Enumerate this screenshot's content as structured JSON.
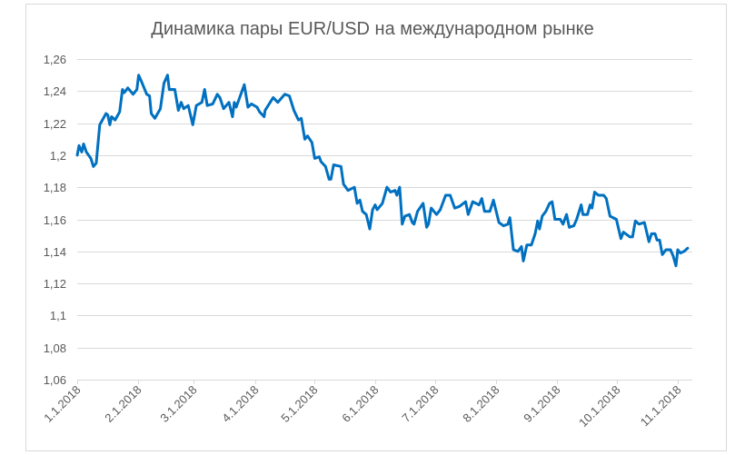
{
  "chart_data": {
    "type": "line",
    "title": "Динамика пары EUR/USD на международном рынке",
    "xlabel": "",
    "ylabel": "",
    "x_unit": "days since 1.1.2018",
    "ylim": [
      1.06,
      1.26
    ],
    "xlim": [
      0,
      311
    ],
    "grid": true,
    "legend": "none",
    "line_color": "#0070C0",
    "yticks": [
      {
        "value": 1.06,
        "label": "1,06"
      },
      {
        "value": 1.08,
        "label": "1,08"
      },
      {
        "value": 1.1,
        "label": "1,1"
      },
      {
        "value": 1.12,
        "label": "1,12"
      },
      {
        "value": 1.14,
        "label": "1,14"
      },
      {
        "value": 1.16,
        "label": "1,16"
      },
      {
        "value": 1.18,
        "label": "1,18"
      },
      {
        "value": 1.2,
        "label": "1,2"
      },
      {
        "value": 1.22,
        "label": "1,22"
      },
      {
        "value": 1.24,
        "label": "1,24"
      },
      {
        "value": 1.26,
        "label": "1,26"
      }
    ],
    "xticks": [
      {
        "value": 0,
        "label": "1.1.2018"
      },
      {
        "value": 31,
        "label": "2.1.2018"
      },
      {
        "value": 59,
        "label": "3.1.2018"
      },
      {
        "value": 90,
        "label": "4.1.2018"
      },
      {
        "value": 120,
        "label": "5.1.2018"
      },
      {
        "value": 151,
        "label": "6.1.2018"
      },
      {
        "value": 181,
        "label": "7.1.2018"
      },
      {
        "value": 212,
        "label": "8.1.2018"
      },
      {
        "value": 243,
        "label": "9.1.2018"
      },
      {
        "value": 273,
        "label": "10.1.2018"
      },
      {
        "value": 304,
        "label": "11.1.2018"
      }
    ],
    "series": [
      {
        "name": "EUR/USD",
        "points": [
          [
            0,
            1.2
          ],
          [
            0.9,
            1.206
          ],
          [
            2.3,
            1.202
          ],
          [
            3.2,
            1.207
          ],
          [
            4.6,
            1.202
          ],
          [
            6.9,
            1.198
          ],
          [
            8.2,
            1.193
          ],
          [
            9.6,
            1.195
          ],
          [
            11.4,
            1.219
          ],
          [
            14.6,
            1.226
          ],
          [
            15.5,
            1.225
          ],
          [
            16.5,
            1.219
          ],
          [
            17.4,
            1.224
          ],
          [
            19.2,
            1.222
          ],
          [
            21.5,
            1.227
          ],
          [
            22.9,
            1.241
          ],
          [
            23.8,
            1.239
          ],
          [
            25.6,
            1.242
          ],
          [
            28.3,
            1.238
          ],
          [
            30.2,
            1.241
          ],
          [
            31.1,
            1.25
          ],
          [
            32.5,
            1.246
          ],
          [
            35.2,
            1.238
          ],
          [
            36.6,
            1.237
          ],
          [
            37.5,
            1.226
          ],
          [
            39.3,
            1.223
          ],
          [
            42.1,
            1.229
          ],
          [
            43.9,
            1.245
          ],
          [
            45.7,
            1.25
          ],
          [
            46.6,
            1.241
          ],
          [
            49.4,
            1.241
          ],
          [
            51.2,
            1.228
          ],
          [
            52.6,
            1.233
          ],
          [
            53.9,
            1.229
          ],
          [
            56.2,
            1.231
          ],
          [
            58.5,
            1.219
          ],
          [
            60.3,
            1.231
          ],
          [
            63.1,
            1.233
          ],
          [
            64.5,
            1.241
          ],
          [
            65.8,
            1.231
          ],
          [
            68.6,
            1.232
          ],
          [
            70.9,
            1.238
          ],
          [
            72.2,
            1.236
          ],
          [
            74.1,
            1.229
          ],
          [
            76.8,
            1.233
          ],
          [
            78.6,
            1.224
          ],
          [
            79.5,
            1.233
          ],
          [
            80.5,
            1.23
          ],
          [
            84.6,
            1.244
          ],
          [
            86.4,
            1.23
          ],
          [
            88.2,
            1.232
          ],
          [
            91.0,
            1.23
          ],
          [
            92.3,
            1.227
          ],
          [
            94.6,
            1.224
          ],
          [
            95.1,
            1.228
          ],
          [
            99.2,
            1.236
          ],
          [
            101.5,
            1.233
          ],
          [
            105.1,
            1.238
          ],
          [
            107.4,
            1.237
          ],
          [
            109.7,
            1.228
          ],
          [
            112.0,
            1.222
          ],
          [
            113.4,
            1.223
          ],
          [
            115.2,
            1.21
          ],
          [
            116.6,
            1.212
          ],
          [
            118.8,
            1.208
          ],
          [
            120.2,
            1.198
          ],
          [
            122.5,
            1.199
          ],
          [
            123.4,
            1.196
          ],
          [
            125.7,
            1.193
          ],
          [
            127.5,
            1.185
          ],
          [
            128.4,
            1.185
          ],
          [
            129.8,
            1.194
          ],
          [
            133.5,
            1.193
          ],
          [
            134.8,
            1.182
          ],
          [
            137.1,
            1.178
          ],
          [
            140.3,
            1.18
          ],
          [
            141.7,
            1.17
          ],
          [
            143.1,
            1.172
          ],
          [
            144.4,
            1.165
          ],
          [
            146.3,
            1.163
          ],
          [
            148.1,
            1.154
          ],
          [
            149.5,
            1.166
          ],
          [
            150.8,
            1.169
          ],
          [
            151.8,
            1.166
          ],
          [
            154.5,
            1.17
          ],
          [
            156.8,
            1.18
          ],
          [
            158.6,
            1.177
          ],
          [
            160.9,
            1.178
          ],
          [
            161.8,
            1.175
          ],
          [
            163.2,
            1.18
          ],
          [
            164.5,
            1.157
          ],
          [
            165.9,
            1.162
          ],
          [
            168.2,
            1.163
          ],
          [
            169.6,
            1.158
          ],
          [
            170.5,
            1.157
          ],
          [
            172.3,
            1.165
          ],
          [
            175.1,
            1.17
          ],
          [
            176.9,
            1.155
          ],
          [
            177.8,
            1.157
          ],
          [
            179.2,
            1.167
          ],
          [
            181.9,
            1.163
          ],
          [
            183.8,
            1.166
          ],
          [
            186.5,
            1.175
          ],
          [
            188.8,
            1.175
          ],
          [
            191.1,
            1.167
          ],
          [
            193.4,
            1.168
          ],
          [
            196.6,
            1.171
          ],
          [
            197.9,
            1.163
          ],
          [
            200.2,
            1.171
          ],
          [
            203.4,
            1.169
          ],
          [
            204.8,
            1.173
          ],
          [
            206.2,
            1.165
          ],
          [
            208.9,
            1.165
          ],
          [
            210.7,
            1.172
          ],
          [
            213.5,
            1.158
          ],
          [
            215.8,
            1.156
          ],
          [
            218.0,
            1.157
          ],
          [
            219.0,
            1.161
          ],
          [
            220.8,
            1.141
          ],
          [
            223.1,
            1.14
          ],
          [
            224.9,
            1.143
          ],
          [
            225.8,
            1.134
          ],
          [
            227.6,
            1.144
          ],
          [
            229.9,
            1.144
          ],
          [
            231.8,
            1.151
          ],
          [
            233.1,
            1.159
          ],
          [
            234.0,
            1.154
          ],
          [
            235.4,
            1.162
          ],
          [
            237.2,
            1.165
          ],
          [
            239.1,
            1.17
          ],
          [
            240.4,
            1.171
          ],
          [
            241.8,
            1.16
          ],
          [
            244.5,
            1.16
          ],
          [
            245.9,
            1.157
          ],
          [
            247.7,
            1.163
          ],
          [
            249.1,
            1.155
          ],
          [
            251.4,
            1.156
          ],
          [
            252.8,
            1.16
          ],
          [
            255.1,
            1.169
          ],
          [
            256.0,
            1.163
          ],
          [
            258.3,
            1.163
          ],
          [
            259.6,
            1.169
          ],
          [
            260.6,
            1.167
          ],
          [
            261.9,
            1.177
          ],
          [
            263.8,
            1.175
          ],
          [
            266.5,
            1.175
          ],
          [
            267.8,
            1.173
          ],
          [
            269.7,
            1.162
          ],
          [
            272.9,
            1.16
          ],
          [
            275.2,
            1.148
          ],
          [
            276.5,
            1.152
          ],
          [
            279.8,
            1.149
          ],
          [
            281.1,
            1.149
          ],
          [
            282.5,
            1.159
          ],
          [
            284.3,
            1.157
          ],
          [
            287.1,
            1.158
          ],
          [
            289.4,
            1.146
          ],
          [
            290.7,
            1.151
          ],
          [
            292.5,
            1.151
          ],
          [
            293.5,
            1.147
          ],
          [
            294.8,
            1.147
          ],
          [
            296.2,
            1.138
          ],
          [
            298.0,
            1.141
          ],
          [
            300.3,
            1.141
          ],
          [
            301.7,
            1.137
          ],
          [
            303.1,
            1.131
          ],
          [
            304.0,
            1.141
          ],
          [
            305.3,
            1.139
          ],
          [
            307.2,
            1.14
          ],
          [
            309.0,
            1.142
          ]
        ]
      }
    ]
  }
}
